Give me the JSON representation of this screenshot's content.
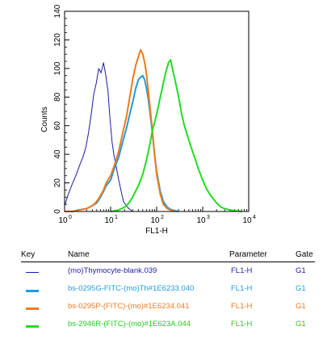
{
  "chart_data": {
    "type": "line",
    "xlabel": "FL1-H",
    "ylabel": "Counts",
    "x_scale": "log",
    "xlim": [
      1,
      10000
    ],
    "ylim": [
      0,
      140
    ],
    "x_ticks": [
      {
        "value": 1,
        "label": "10",
        "exp": "0"
      },
      {
        "value": 10,
        "label": "10",
        "exp": "1"
      },
      {
        "value": 100,
        "label": "10",
        "exp": "2"
      },
      {
        "value": 1000,
        "label": "10",
        "exp": "3"
      },
      {
        "value": 10000,
        "label": "10",
        "exp": "4"
      }
    ],
    "y_ticks": [
      0,
      20,
      40,
      60,
      80,
      100,
      120,
      140
    ],
    "series": [
      {
        "name": "(mo)Thymocyte-blank.039",
        "color": "#1a1aa6",
        "width": 1,
        "x": [
          1.0,
          1.2,
          1.5,
          1.8,
          2.1,
          2.5,
          2.9,
          3.3,
          3.8,
          4.3,
          4.9,
          5.5,
          6.2,
          7.0,
          7.8,
          8.7,
          9.7,
          10.8,
          12,
          13.5,
          15,
          17,
          19,
          22,
          25,
          30
        ],
        "y": [
          4,
          12,
          20,
          26,
          32,
          38,
          45,
          55,
          68,
          82,
          90,
          100,
          97,
          104,
          96,
          85,
          65,
          48,
          38,
          30,
          22,
          14,
          7,
          4,
          2,
          0
        ]
      },
      {
        "name": "bs-0295G-FITC-(mo)Th#1E6233.040",
        "color": "#1f9ce0",
        "width": 2,
        "x": [
          1.0,
          1.5,
          2,
          3,
          4,
          5,
          6,
          7,
          8,
          10,
          12,
          15,
          18,
          22,
          26,
          30,
          35,
          40,
          45,
          50,
          55,
          60,
          65,
          70,
          80,
          90,
          100,
          120,
          140,
          170,
          200,
          250,
          300
        ],
        "y": [
          0,
          0,
          1,
          2,
          4,
          6,
          10,
          14,
          18,
          22,
          30,
          38,
          48,
          58,
          68,
          76,
          86,
          92,
          94,
          95,
          92,
          86,
          80,
          72,
          56,
          40,
          28,
          14,
          7,
          3,
          1.5,
          0.5,
          0
        ]
      },
      {
        "name": "bs-0295P-(FITC)-(mo)#1E6234.041",
        "color": "#f07a1a",
        "width": 2,
        "x": [
          1.0,
          1.5,
          2,
          3,
          4,
          5,
          6,
          7,
          8,
          10,
          12,
          15,
          18,
          22,
          26,
          30,
          35,
          40,
          45,
          50,
          55,
          60,
          65,
          70,
          80,
          90,
          100,
          120,
          140,
          170,
          200,
          250
        ],
        "y": [
          0,
          0,
          1,
          2,
          4,
          7,
          11,
          15,
          20,
          25,
          32,
          42,
          54,
          66,
          80,
          92,
          102,
          108,
          113,
          110,
          104,
          96,
          86,
          76,
          58,
          40,
          26,
          12,
          5,
          2,
          1,
          0
        ]
      },
      {
        "name": "bs-2946R-(FITC)-(mo)#1E623A.044",
        "color": "#22dd22",
        "width": 2,
        "x": [
          10,
          15,
          20,
          25,
          30,
          40,
          50,
          60,
          70,
          80,
          100,
          120,
          140,
          160,
          180,
          200,
          220,
          250,
          300,
          350,
          400,
          500,
          600,
          700,
          800,
          1000,
          1200,
          1500,
          2000,
          2500,
          3000,
          4000,
          5000,
          7000
        ],
        "y": [
          0,
          1,
          3,
          6,
          10,
          18,
          26,
          36,
          46,
          56,
          68,
          80,
          90,
          98,
          104,
          106,
          100,
          92,
          80,
          68,
          60,
          50,
          42,
          36,
          30,
          22,
          16,
          11,
          6,
          3,
          2,
          1,
          0.5,
          0
        ]
      }
    ]
  },
  "legend_table": {
    "headers": {
      "key": "Key",
      "name": "Name",
      "parameter": "Parameter",
      "gate": "Gate"
    },
    "rows": [
      {
        "name": "(mo)Thymocyte-blank.039",
        "parameter": "FL1-H",
        "gate": "G1",
        "color": "#1a1aa6",
        "text_color": "#2222aa"
      },
      {
        "name": "bs-0295G-FITC-(mo)Th#1E6233.040",
        "parameter": "FL1-H",
        "gate": "G1",
        "color": "#1f9ce0",
        "text_color": "#1f9ce0"
      },
      {
        "name": "bs-0295P-(FITC)-(mo)#1E6234.041",
        "parameter": "FL1-H",
        "gate": "G1",
        "color": "#f07a1a",
        "text_color": "#f07a1a"
      },
      {
        "name": "bs-2946R-(FITC)-(mo)#1E623A.044",
        "parameter": "FL1-H",
        "gate": "G1",
        "color": "#22dd22",
        "text_color": "#22cc22"
      }
    ]
  }
}
